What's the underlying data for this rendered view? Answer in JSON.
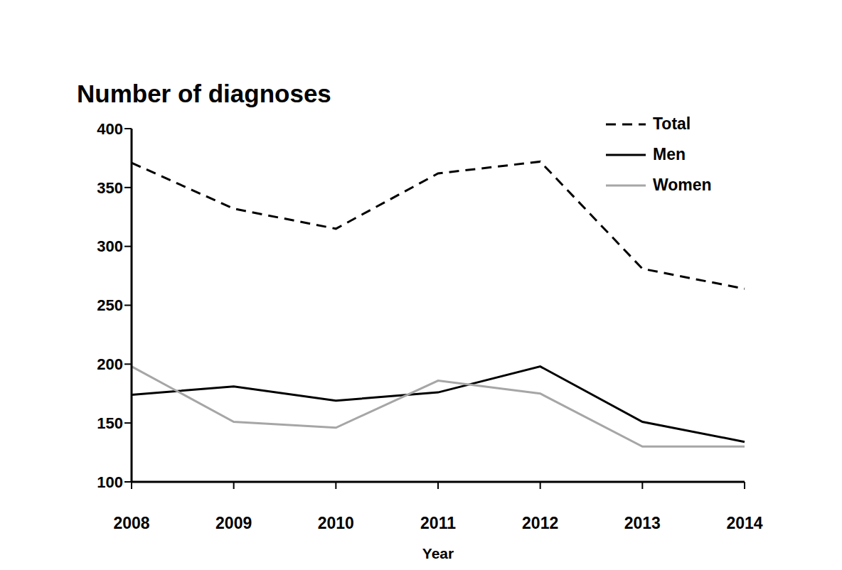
{
  "chart_data": {
    "type": "line",
    "title": "Number of diagnoses",
    "x_label": "Year",
    "categories": [
      "2008",
      "2009",
      "2010",
      "2011",
      "2012",
      "2013",
      "2014"
    ],
    "series": [
      {
        "name": "Total",
        "color": "#000000",
        "line_style": "dashed",
        "values": [
          371,
          332,
          315,
          362,
          372,
          281,
          264
        ]
      },
      {
        "name": "Men",
        "color": "#000000",
        "line_style": "solid",
        "values": [
          174,
          181,
          169,
          176,
          198,
          151,
          134
        ]
      },
      {
        "name": "Women",
        "color": "#a6a6a6",
        "line_style": "solid",
        "values": [
          198,
          151,
          146,
          186,
          175,
          130,
          130
        ]
      }
    ],
    "ylim": [
      100,
      400
    ],
    "yticks": [
      100,
      150,
      200,
      250,
      300,
      350,
      400
    ],
    "grid": false,
    "legend": "upper right"
  }
}
